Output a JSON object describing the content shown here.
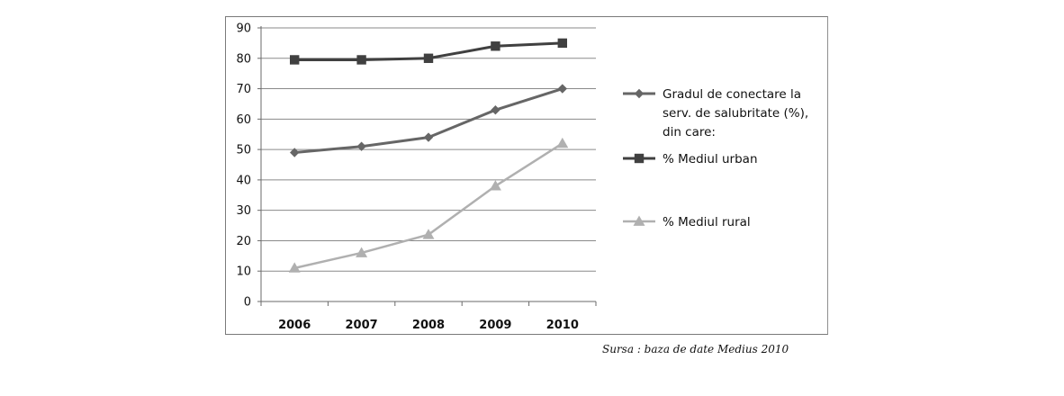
{
  "chart_data": {
    "type": "line",
    "categories": [
      "2006",
      "2007",
      "2008",
      "2009",
      "2010"
    ],
    "ylim": [
      0,
      90
    ],
    "yticks": [
      0,
      10,
      20,
      30,
      40,
      50,
      60,
      70,
      80,
      90
    ],
    "grid": true,
    "legend_position": "right",
    "series": [
      {
        "name": "Gradul de conectare la serv. de salubritate (%), din care:",
        "legend_lines": [
          "Gradul de conectare la",
          "serv. de salubritate (%),",
          "din care:"
        ],
        "marker": "diamond",
        "color": "#666666",
        "values": [
          49,
          51,
          54,
          63,
          70
        ]
      },
      {
        "name": "% Mediul urban",
        "legend_lines": [
          "% Mediul urban"
        ],
        "marker": "square",
        "color": "#404040",
        "values": [
          79.5,
          79.5,
          80,
          84,
          85
        ]
      },
      {
        "name": "% Mediul rural",
        "legend_lines": [
          "% Mediul rural"
        ],
        "marker": "triangle",
        "color": "#b0b0b0",
        "values": [
          11,
          16,
          22,
          38,
          52
        ]
      }
    ]
  },
  "source_note": "Sursa : baza de date Medius 2010"
}
